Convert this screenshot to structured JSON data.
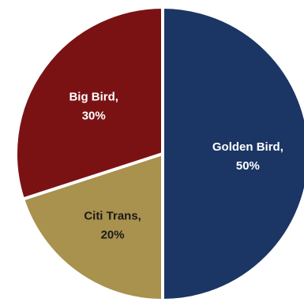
{
  "chart_data": {
    "type": "pie",
    "title": "",
    "slices": [
      {
        "name": "Golden Bird",
        "value": 50,
        "name_label": "Golden Bird,",
        "value_label": "50%",
        "color": "#1b3564",
        "label_color": "#ffffff"
      },
      {
        "name": "Citi Trans",
        "value": 20,
        "name_label": "Citi Trans,",
        "value_label": "20%",
        "color": "#a9914e",
        "label_color": "#1a1a1a"
      },
      {
        "name": "Big Bird",
        "value": 30,
        "name_label": "Big Bird,",
        "value_label": "30%",
        "color": "#7a1214",
        "label_color": "#ffffff"
      }
    ],
    "start_angle_deg": 0,
    "direction": "clockwise",
    "legend": "none",
    "data_labels": "inside"
  }
}
